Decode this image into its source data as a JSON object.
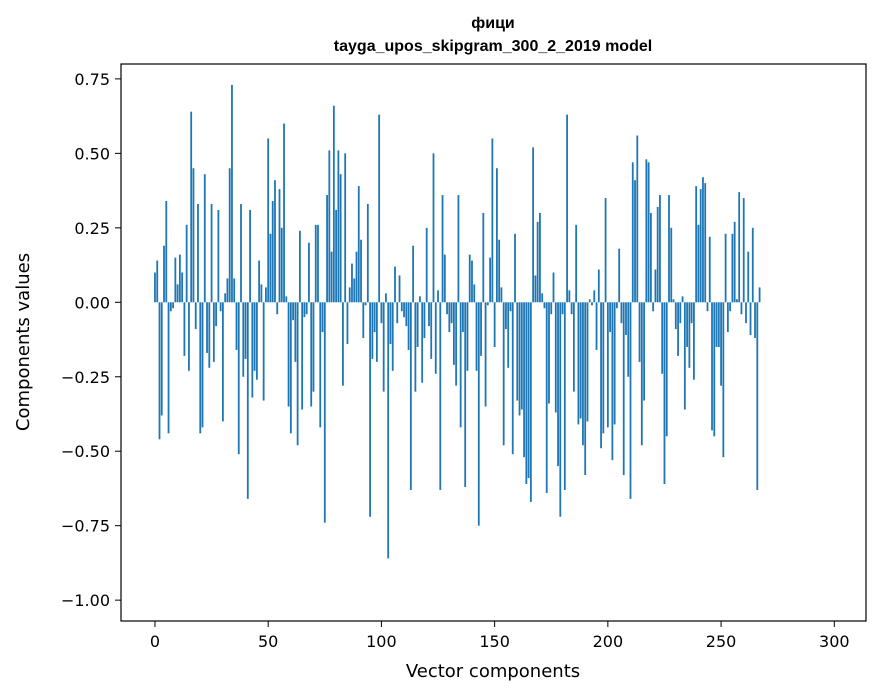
{
  "chart_data": {
    "type": "bar",
    "title": "фици",
    "subtitle": "tayga_upos_skipgram_300_2_2019 model",
    "xlabel": "Vector components",
    "ylabel": "Components values",
    "xlim": [
      -15,
      314
    ],
    "ylim": [
      -1.07,
      0.8
    ],
    "xticks": [
      0,
      50,
      100,
      150,
      200,
      250,
      300
    ],
    "xtick_labels": [
      "0",
      "50",
      "100",
      "150",
      "200",
      "250",
      "300"
    ],
    "yticks": [
      0.75,
      0.5,
      0.25,
      0.0,
      -0.25,
      -0.5,
      -0.75,
      -1.0
    ],
    "ytick_labels": [
      "0.75",
      "0.50",
      "0.25",
      "0.00",
      "−0.25",
      "−0.50",
      "−0.75",
      "−1.00"
    ],
    "grid": false,
    "legend": "none",
    "bar_color": "#1f77b4",
    "values": [
      0.1,
      0.14,
      -0.46,
      -0.38,
      0.19,
      0.34,
      -0.44,
      -0.03,
      -0.02,
      0.15,
      0.06,
      0.16,
      0.1,
      -0.18,
      0.26,
      -0.23,
      0.64,
      0.45,
      -0.09,
      0.33,
      -0.44,
      -0.42,
      0.43,
      -0.17,
      -0.22,
      0.33,
      -0.2,
      -0.08,
      0.31,
      -0.03,
      -0.4,
      0.03,
      0.08,
      0.45,
      0.73,
      0.08,
      -0.16,
      -0.51,
      0.33,
      -0.25,
      -0.19,
      -0.66,
      0.31,
      -0.32,
      -0.23,
      -0.26,
      0.14,
      0.06,
      -0.33,
      0.05,
      0.55,
      0.23,
      0.34,
      0.41,
      -0.04,
      0.38,
      0.25,
      0.6,
      0.02,
      -0.35,
      -0.44,
      -0.06,
      -0.2,
      -0.48,
      0.24,
      -0.36,
      -0.05,
      -0.04,
      0.2,
      -0.35,
      -0.3,
      0.26,
      0.26,
      -0.42,
      -0.1,
      -0.74,
      0.36,
      0.51,
      0.17,
      0.66,
      0.31,
      0.51,
      0.43,
      -0.28,
      0.5,
      -0.14,
      0.05,
      0.13,
      0.08,
      0.17,
      0.39,
      0.21,
      -0.12,
      -0.01,
      0.33,
      -0.72,
      -0.19,
      -0.1,
      -0.2,
      0.63,
      -0.07,
      -0.3,
      0.03,
      -0.86,
      -0.14,
      -0.23,
      0.12,
      -0.07,
      0.09,
      -0.03,
      -0.05,
      -0.08,
      -0.16,
      -0.63,
      0.19,
      -0.3,
      -0.15,
      0.02,
      -0.27,
      -0.12,
      0.25,
      -0.08,
      -0.19,
      0.5,
      -0.24,
      0.04,
      -0.63,
      0.36,
      0.16,
      -0.04,
      -0.1,
      -0.07,
      -0.21,
      -0.28,
      0.36,
      -0.42,
      -0.1,
      -0.62,
      -0.23,
      0.16,
      0.14,
      0.06,
      -0.23,
      -0.75,
      -0.18,
      0.3,
      -0.35,
      -0.01,
      0.15,
      0.55,
      -0.15,
      0.45,
      0.21,
      0.05,
      -0.48,
      -0.09,
      -0.22,
      -0.03,
      -0.51,
      0.23,
      -0.33,
      -0.38,
      -0.36,
      -0.52,
      -0.61,
      -0.59,
      -0.67,
      0.52,
      0.09,
      0.27,
      0.3,
      0.03,
      -0.02,
      -0.64,
      -0.34,
      -0.04,
      0.1,
      -0.37,
      -0.55,
      -0.72,
      -0.04,
      -0.63,
      0.63,
      0.04,
      -0.04,
      -0.3,
      0.26,
      -0.41,
      -0.39,
      -0.48,
      -0.58,
      -0.4,
      0.01,
      -0.01,
      0.04,
      -0.16,
      0.11,
      -0.49,
      -0.44,
      0.35,
      -0.42,
      -0.1,
      -0.53,
      -0.41,
      -0.02,
      0.18,
      -0.07,
      -0.58,
      -0.11,
      -0.25,
      -0.66,
      0.47,
      0.41,
      0.56,
      -0.2,
      -0.48,
      -0.33,
      0.48,
      0.47,
      0.3,
      -0.03,
      0.11,
      0.32,
      0.36,
      -0.24,
      -0.61,
      -0.45,
      0.36,
      0.25,
      0.01,
      -0.09,
      -0.18,
      -0.07,
      0.02,
      -0.36,
      -0.15,
      -0.22,
      -0.07,
      -0.26,
      0.39,
      0.26,
      0.38,
      0.42,
      0.4,
      -0.03,
      0.22,
      -0.43,
      -0.45,
      -0.15,
      -0.15,
      -0.28,
      -0.52,
      0.23,
      -0.1,
      -0.03,
      0.23,
      0.27,
      0.01,
      0.37,
      -0.04,
      0.35,
      -0.07,
      0.17,
      -0.11,
      0.25,
      -0.12,
      -0.63,
      0.05
    ]
  }
}
